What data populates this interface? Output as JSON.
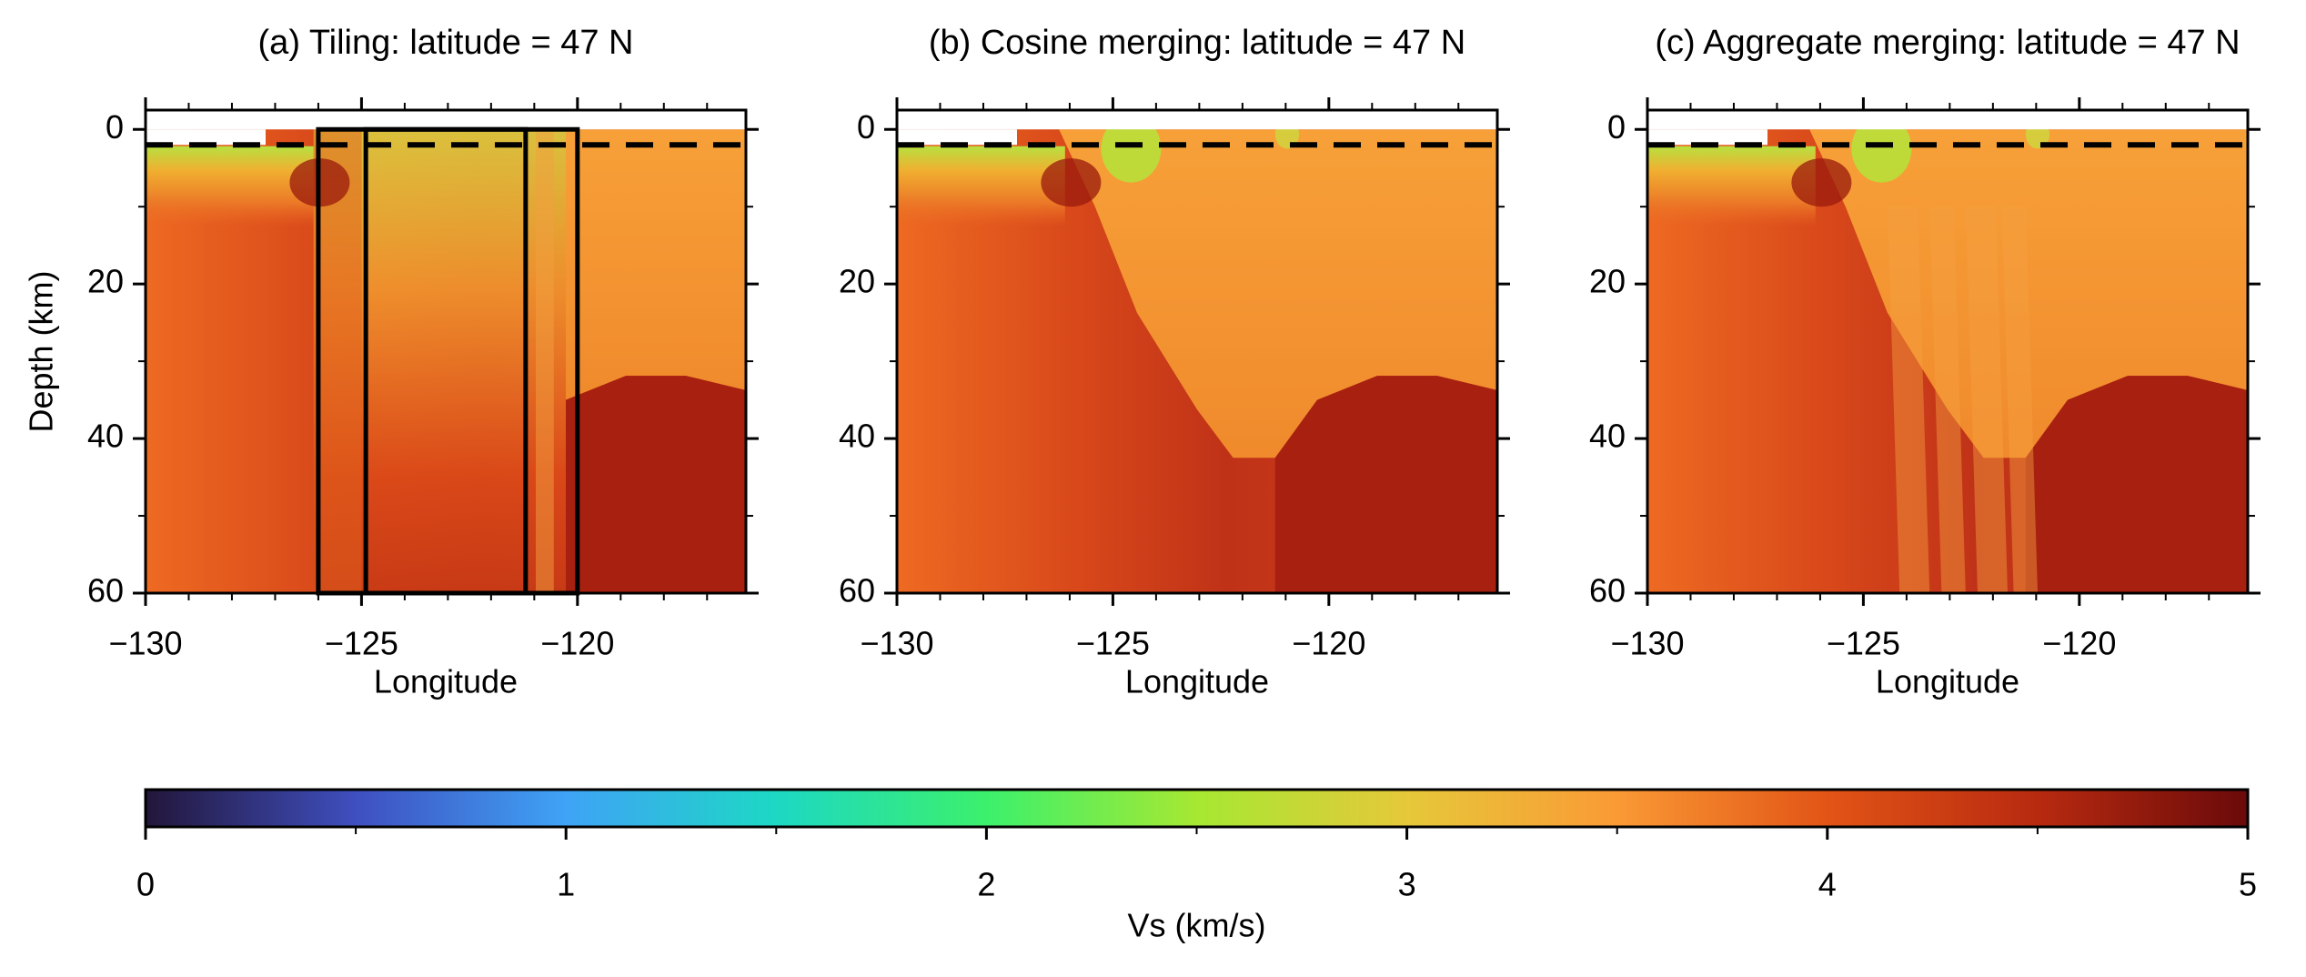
{
  "chart_data": [
    {
      "type": "heatmap",
      "title": "(a) Tiling: latitude = 47 N",
      "xlabel": "Longitude",
      "ylabel": "Depth (km)",
      "xlim": [
        -130,
        -116.1
      ],
      "ylim": [
        -2.5,
        60
      ],
      "y_inverted": true,
      "xticks": [
        {
          "value": -130,
          "label": "−130"
        },
        {
          "value": -125,
          "label": "−125"
        },
        {
          "value": -120,
          "label": "−120"
        }
      ],
      "minor_xticks": [
        -129,
        -128,
        -127,
        -126,
        -124,
        -123,
        -122,
        -121,
        -119,
        -118,
        -117
      ],
      "yticks": [
        0,
        20,
        40,
        60
      ],
      "minor_yticks": [
        10,
        30,
        50
      ],
      "reference_depth": 2,
      "tiles": [
        {
          "lon": [
            -126,
            -121.2
          ],
          "depth": [
            0,
            60
          ]
        },
        {
          "lon": [
            -124.9,
            -120
          ],
          "depth": [
            0,
            60
          ]
        }
      ]
    },
    {
      "type": "heatmap",
      "title": "(b) Cosine merging: latitude = 47 N",
      "xlabel": "Longitude",
      "xlim": [
        -130,
        -116.1
      ],
      "ylim": [
        -2.5,
        60
      ],
      "y_inverted": true,
      "xticks": [
        {
          "value": -130,
          "label": "−130"
        },
        {
          "value": -125,
          "label": "−125"
        },
        {
          "value": -120,
          "label": "−120"
        }
      ],
      "minor_xticks": [
        -129,
        -128,
        -127,
        -126,
        -124,
        -123,
        -122,
        -121,
        -119,
        -118,
        -117
      ],
      "yticks": [
        0,
        20,
        40,
        60
      ],
      "minor_yticks": [
        10,
        30,
        50
      ],
      "reference_depth": 2
    },
    {
      "type": "heatmap",
      "title": "(c) Aggregate merging: latitude = 47 N",
      "xlabel": "Longitude",
      "xlim": [
        -130,
        -116.1
      ],
      "ylim": [
        -2.5,
        60
      ],
      "y_inverted": true,
      "xticks": [
        {
          "value": -130,
          "label": "−130"
        },
        {
          "value": -125,
          "label": "−125"
        },
        {
          "value": -120,
          "label": "−120"
        }
      ],
      "minor_xticks": [
        -129,
        -128,
        -127,
        -126,
        -124,
        -123,
        -122,
        -121,
        -119,
        -118,
        -117
      ],
      "yticks": [
        0,
        20,
        40,
        60
      ],
      "minor_yticks": [
        10,
        30,
        50
      ],
      "reference_depth": 2
    },
    {
      "type": "colorbar",
      "xlabel": "Vs (km/s)",
      "xlim": [
        0,
        5
      ],
      "xticks": [
        0,
        1,
        2,
        3,
        4,
        5
      ],
      "minor_xticks": [
        0.5,
        1.5,
        2.5,
        3.5,
        4.5
      ],
      "colormap": [
        {
          "value": 0,
          "color": "#22163a"
        },
        {
          "value": 0.5,
          "color": "#3f4fbf"
        },
        {
          "value": 1,
          "color": "#3fa3f6"
        },
        {
          "value": 1.5,
          "color": "#1dd8c4"
        },
        {
          "value": 2,
          "color": "#3cf06c"
        },
        {
          "value": 2.5,
          "color": "#a6e832"
        },
        {
          "value": 3,
          "color": "#e6c83a"
        },
        {
          "value": 3.5,
          "color": "#fa9a35"
        },
        {
          "value": 4,
          "color": "#e25416"
        },
        {
          "value": 4.5,
          "color": "#b82a10"
        },
        {
          "value": 5,
          "color": "#6a0a0a"
        }
      ]
    }
  ]
}
